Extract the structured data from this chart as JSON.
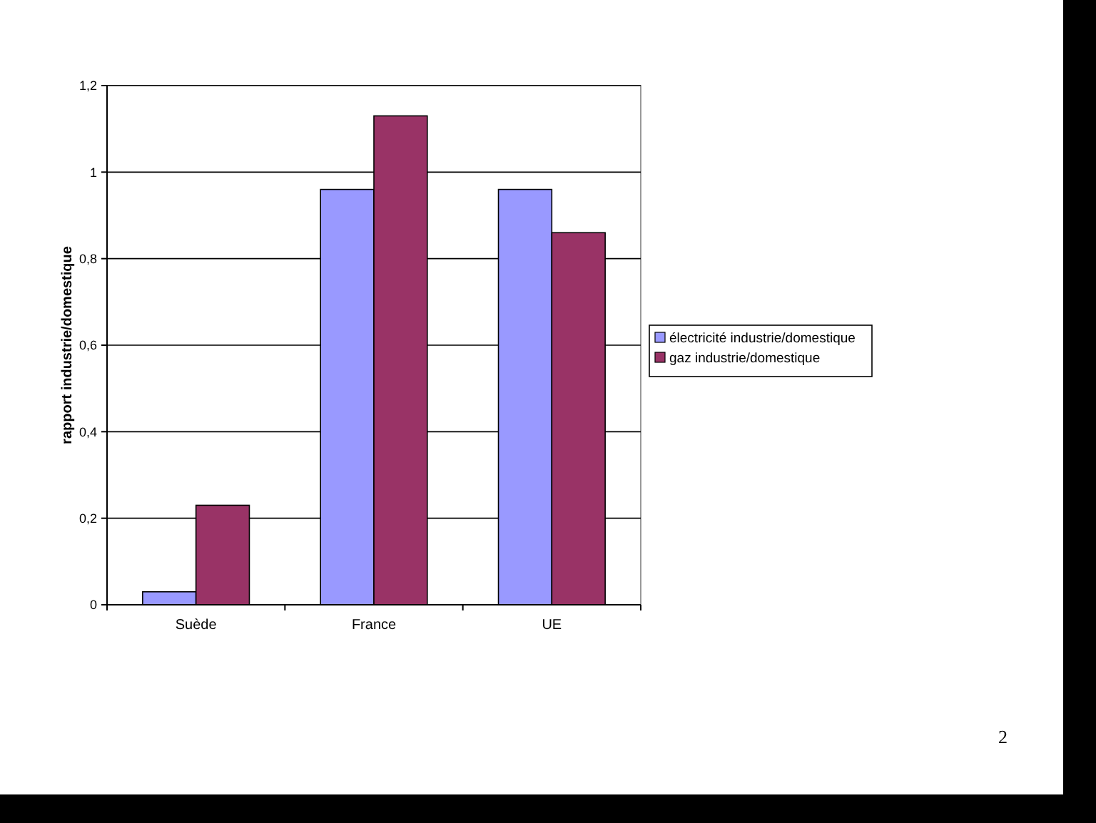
{
  "chart_data": {
    "type": "bar",
    "ylabel": "rapport industrie/domestique",
    "categories": [
      "Suède",
      "France",
      "UE"
    ],
    "series": [
      {
        "name": "électricité industrie/domestique",
        "color": "#9999ff",
        "values": [
          0.03,
          0.96,
          0.96
        ]
      },
      {
        "name": "gaz industrie/domestique",
        "color": "#993366",
        "values": [
          0.23,
          1.13,
          0.86
        ]
      }
    ],
    "ylim": [
      0,
      1.2
    ],
    "yticks": [
      0,
      {
        "value": 0.2,
        "label": "0,2"
      },
      {
        "value": 0.4,
        "label": "0,4"
      },
      {
        "value": 0.6,
        "label": "0,6"
      },
      {
        "value": 0.8,
        "label": "0,8"
      },
      1,
      {
        "value": 1.2,
        "label": "1,2"
      }
    ],
    "grid": "y",
    "legend": "right",
    "annotations": [
      "2"
    ]
  }
}
